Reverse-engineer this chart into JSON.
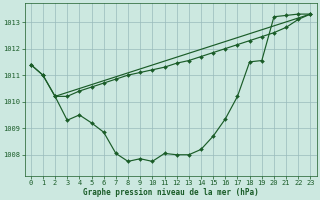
{
  "xlabel": "Graphe pression niveau de la mer (hPa)",
  "hours": [
    0,
    1,
    2,
    3,
    4,
    5,
    6,
    7,
    8,
    9,
    10,
    11,
    12,
    13,
    14,
    15,
    16,
    17,
    18,
    19,
    20,
    21,
    22,
    23
  ],
  "line1": [
    1011.4,
    1011.0,
    1010.2,
    1010.2,
    1010.4,
    1010.55,
    1010.7,
    1010.85,
    1011.0,
    1011.1,
    1011.2,
    1011.3,
    1011.45,
    1011.55,
    1011.7,
    1011.85,
    1012.0,
    1012.15,
    1012.3,
    1012.45,
    1012.6,
    1012.8,
    1013.1,
    1013.3
  ],
  "line2": [
    1011.4,
    1011.0,
    1010.2,
    1009.3,
    1009.5,
    1009.2,
    1008.85,
    1008.05,
    1007.75,
    1007.85,
    1007.75,
    1008.05,
    1008.0,
    1008.0,
    1008.2,
    1008.7,
    1009.35,
    1010.2,
    1011.5,
    1011.55,
    1013.2,
    1013.25,
    1013.3,
    1013.3
  ],
  "line3_x": [
    2,
    23
  ],
  "line3_y": [
    1010.2,
    1013.3
  ],
  "bg_color": "#cce8e0",
  "grid_color": "#99bbbb",
  "line_color": "#1a5c28",
  "ylim_min": 1007.2,
  "ylim_max": 1013.7,
  "yticks": [
    1008,
    1009,
    1010,
    1011,
    1012,
    1013
  ],
  "xticks": [
    0,
    1,
    2,
    3,
    4,
    5,
    6,
    7,
    8,
    9,
    10,
    11,
    12,
    13,
    14,
    15,
    16,
    17,
    18,
    19,
    20,
    21,
    22,
    23
  ],
  "text_color": "#1a5c28",
  "font_family": "monospace",
  "marker_size": 2.0,
  "line_width": 0.85
}
